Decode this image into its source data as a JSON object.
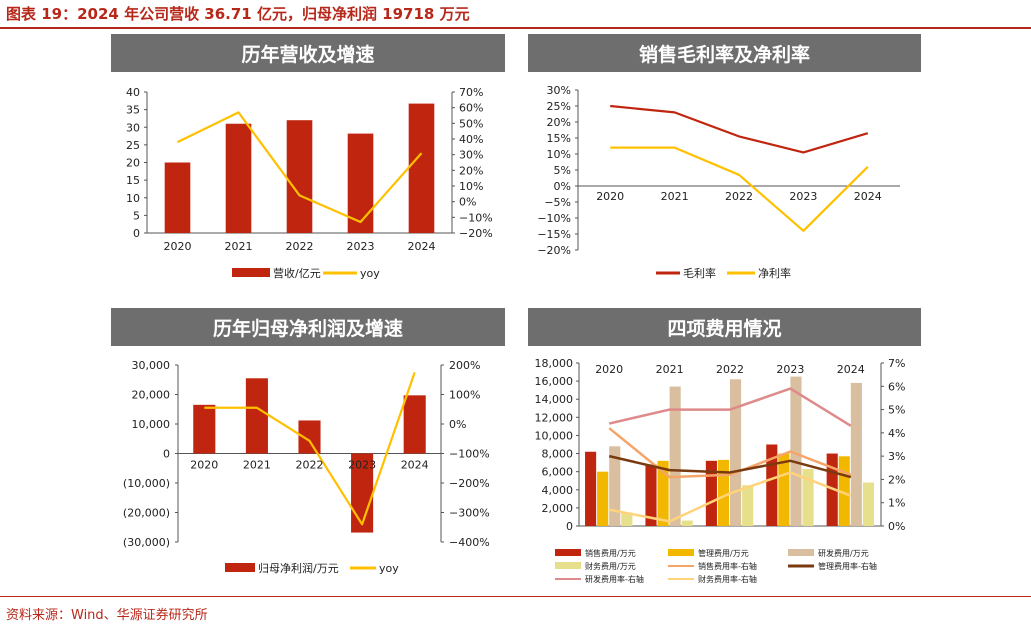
{
  "header": {
    "title": "图表 19：2024 年公司营收 36.71 亿元，归母净利润 19718 万元"
  },
  "footer": {
    "source": "资料来源：Wind、华源证券研究所"
  },
  "colors": {
    "accent": "#b7281a",
    "panel_header": "#6e6e6e",
    "bar_red": "#c0260f",
    "line_yellow": "#ffc000"
  },
  "chart_data": [
    {
      "id": "revenue",
      "type": "bar",
      "title": "历年营收及增速",
      "categories": [
        "2020",
        "2021",
        "2022",
        "2023",
        "2024"
      ],
      "series": [
        {
          "name": "营收/亿元",
          "type": "bar",
          "axis": "left",
          "color": "#c0260f",
          "values": [
            20,
            31,
            32,
            28.2,
            36.71
          ]
        },
        {
          "name": "yoy",
          "type": "line",
          "axis": "right",
          "color": "#ffc000",
          "values": [
            0.38,
            0.57,
            0.04,
            -0.13,
            0.31
          ]
        }
      ],
      "y_left": {
        "min": 0,
        "max": 40,
        "step": 5,
        "ticks": [
          "0",
          "5",
          "10",
          "15",
          "20",
          "25",
          "30",
          "35",
          "40"
        ]
      },
      "y_right": {
        "min": -0.2,
        "max": 0.7,
        "step": 0.1,
        "ticks": [
          "−20%",
          "−10%",
          "0%",
          "10%",
          "20%",
          "30%",
          "40%",
          "50%",
          "60%",
          "70%"
        ]
      },
      "legend": [
        "营收/亿元",
        "yoy"
      ],
      "legend_position": "bottom",
      "grid": false
    },
    {
      "id": "margins",
      "type": "line",
      "title": "销售毛利率及净利率",
      "categories": [
        "2020",
        "2021",
        "2022",
        "2023",
        "2024"
      ],
      "series": [
        {
          "name": "毛利率",
          "color": "#c0260f",
          "values": [
            0.25,
            0.23,
            0.155,
            0.105,
            0.165
          ]
        },
        {
          "name": "净利率",
          "color": "#ffc000",
          "values": [
            0.12,
            0.12,
            0.035,
            -0.14,
            0.06
          ]
        }
      ],
      "y_left": {
        "min": -0.2,
        "max": 0.3,
        "step": 0.05,
        "ticks": [
          "−20%",
          "−15%",
          "−10%",
          "−5%",
          "0%",
          "5%",
          "10%",
          "15%",
          "20%",
          "25%",
          "30%"
        ]
      },
      "legend": [
        "毛利率",
        "净利率"
      ],
      "legend_position": "bottom",
      "grid": false
    },
    {
      "id": "net_profit",
      "type": "bar",
      "title": "历年归母净利润及增速",
      "categories": [
        "2020",
        "2021",
        "2022",
        "2023",
        "2024"
      ],
      "series": [
        {
          "name": "归母净利润/万元",
          "type": "bar",
          "axis": "left",
          "color": "#c0260f",
          "values": [
            16500,
            25500,
            11200,
            -26800,
            19718
          ]
        },
        {
          "name": "yoy",
          "type": "line",
          "axis": "right",
          "color": "#ffc000",
          "values": [
            0.55,
            0.55,
            -0.57,
            -3.4,
            1.75
          ]
        }
      ],
      "y_left": {
        "min": -30000,
        "max": 30000,
        "step": 10000,
        "ticks": [
          "(30,000)",
          "(20,000)",
          "(10,000)",
          "0",
          "10,000",
          "20,000",
          "30,000"
        ]
      },
      "y_right": {
        "min": -4.0,
        "max": 2.0,
        "step": 1.0,
        "ticks": [
          "−400%",
          "−300%",
          "−200%",
          "−100%",
          "0%",
          "100%",
          "200%"
        ]
      },
      "legend": [
        "归母净利润/万元",
        "yoy"
      ],
      "legend_position": "bottom",
      "grid": false
    },
    {
      "id": "expenses",
      "type": "bar",
      "title": "四项费用情况",
      "categories": [
        "2020",
        "2021",
        "2022",
        "2023",
        "2024"
      ],
      "series": [
        {
          "name": "销售费用/万元",
          "type": "bar",
          "axis": "left",
          "color": "#c0260f",
          "values": [
            8200,
            6800,
            7200,
            9000,
            8000
          ]
        },
        {
          "name": "管理费用/万元",
          "type": "bar",
          "axis": "left",
          "color": "#f2b800",
          "values": [
            6000,
            7200,
            7300,
            8000,
            7700
          ]
        },
        {
          "name": "研发费用/万元",
          "type": "bar",
          "axis": "left",
          "color": "#d9bfa0",
          "values": [
            8800,
            15400,
            16200,
            16500,
            15800
          ]
        },
        {
          "name": "财务费用/万元",
          "type": "bar",
          "axis": "left",
          "color": "#e6e08c",
          "values": [
            1500,
            600,
            4500,
            6300,
            4800
          ]
        },
        {
          "name": "销售费用率-右轴",
          "type": "line",
          "axis": "right",
          "color": "#f4a66a",
          "values": [
            0.042,
            0.021,
            0.022,
            0.032,
            0.022
          ]
        },
        {
          "name": "管理费用率-右轴",
          "type": "line",
          "axis": "right",
          "color": "#7a3a10",
          "values": [
            0.03,
            0.024,
            0.023,
            0.028,
            0.021
          ]
        },
        {
          "name": "研发费用率-右轴",
          "type": "line",
          "axis": "right",
          "color": "#df8a8a",
          "values": [
            0.044,
            0.05,
            0.05,
            0.059,
            0.043
          ]
        },
        {
          "name": "财务费用率-右轴",
          "type": "line",
          "axis": "right",
          "color": "#ffd37a",
          "values": [
            0.007,
            0.002,
            0.014,
            0.023,
            0.013
          ]
        }
      ],
      "y_left": {
        "min": 0,
        "max": 18000,
        "step": 2000,
        "ticks": [
          "0",
          "2,000",
          "4,000",
          "6,000",
          "8,000",
          "10,000",
          "12,000",
          "14,000",
          "16,000",
          "18,000"
        ]
      },
      "y_right": {
        "min": 0,
        "max": 0.07,
        "step": 0.01,
        "ticks": [
          "0%",
          "1%",
          "2%",
          "3%",
          "4%",
          "5%",
          "6%",
          "7%"
        ]
      },
      "legend": [
        "销售费用/万元",
        "管理费用/万元",
        "研发费用/万元",
        "财务费用/万元",
        "销售费用率-右轴",
        "管理费用率-右轴",
        "研发费用率-右轴",
        "财务费用率-右轴"
      ],
      "legend_position": "bottom",
      "grid": false
    }
  ]
}
